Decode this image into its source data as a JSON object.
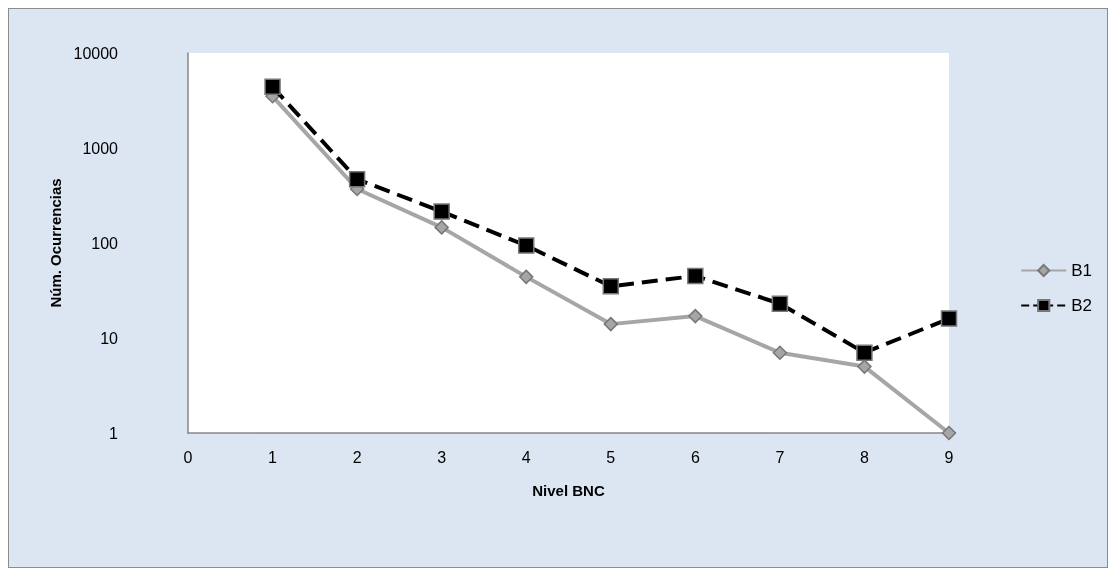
{
  "chart_data": {
    "type": "line",
    "xlabel": "Nivel BNC",
    "ylabel": "Núm. Ocurrencias",
    "x": [
      1,
      2,
      3,
      4,
      5,
      6,
      7,
      8,
      9
    ],
    "series": [
      {
        "name": "B1",
        "color": "#a6a6a6",
        "marker": "diamond",
        "line_style": "solid",
        "values": [
          3500,
          370,
          146,
          44,
          14,
          17,
          7,
          5,
          1
        ]
      },
      {
        "name": "B2",
        "color": "#000000",
        "marker": "square",
        "line_style": "dashed",
        "values": [
          4400,
          470,
          214,
          94,
          35,
          45,
          23,
          7,
          16
        ]
      }
    ],
    "xlim": [
      0,
      9
    ],
    "xticks": [
      0,
      1,
      2,
      3,
      4,
      5,
      6,
      7,
      8,
      9
    ],
    "ylim": [
      1,
      10000
    ],
    "yticks": [
      1,
      10,
      100,
      1000,
      10000
    ],
    "log": "y",
    "grid": false,
    "legend": "right"
  }
}
